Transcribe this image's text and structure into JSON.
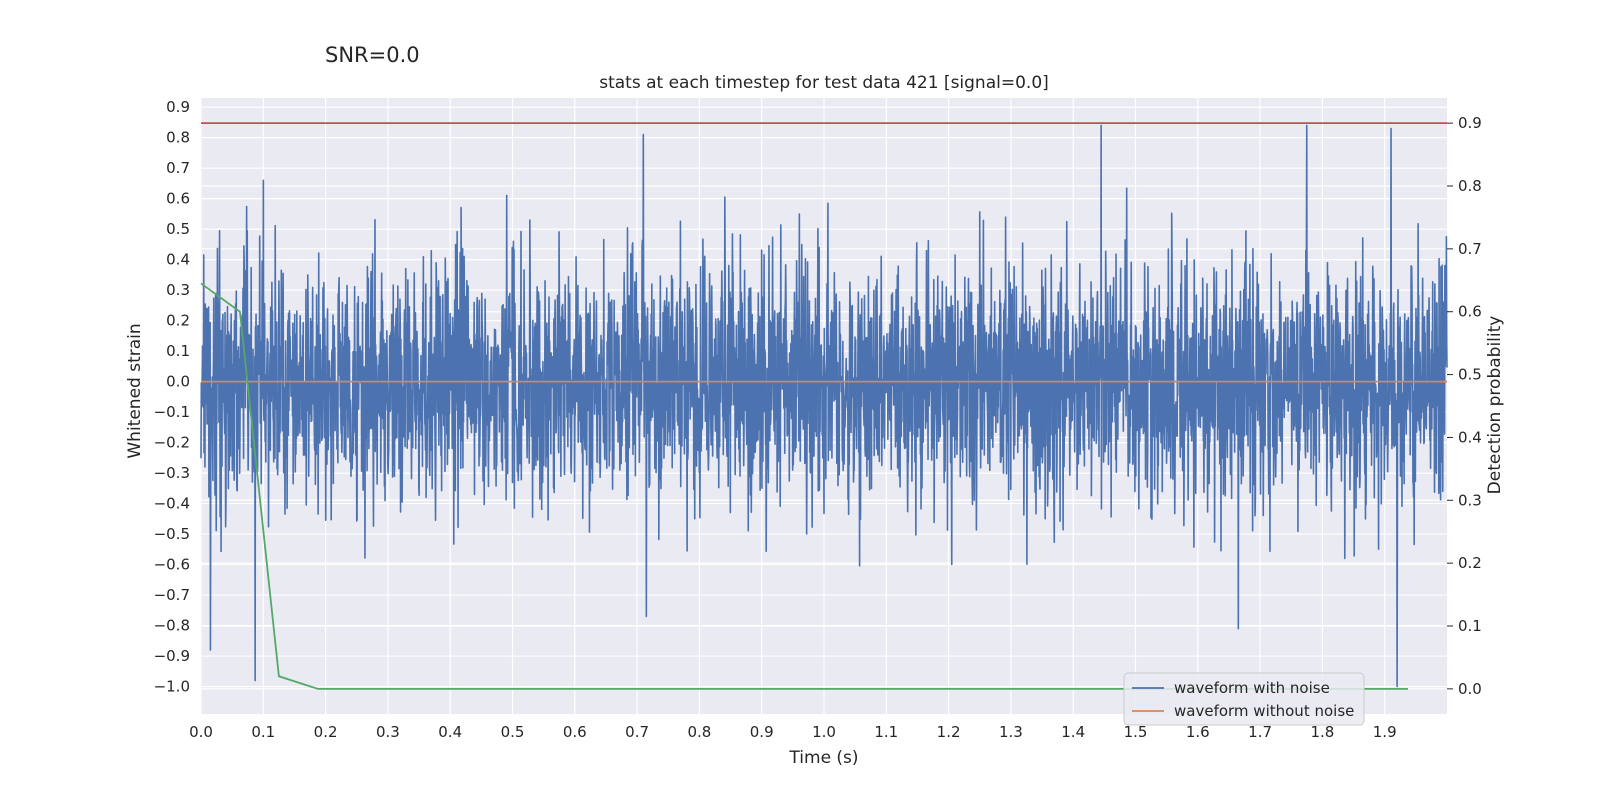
{
  "colors": {
    "background": "#eaeaf2",
    "grid": "#ffffff",
    "noisy": "#4c72b0",
    "clean": "#dd8452",
    "probability": "#55a868",
    "threshold": "#c44e52"
  },
  "chart_data": {
    "type": "line",
    "suptitle": "SNR=0.0",
    "title": "stats at each timestep for test data 421 [signal=0.0]",
    "xlabel": "Time (s)",
    "ylabel_left": "Whitened strain",
    "ylabel_right": "Detection probability",
    "xlim": [
      0.0,
      2.0
    ],
    "ylim_left": [
      -1.09,
      0.93
    ],
    "ylim_right": [
      -0.04,
      0.94
    ],
    "x_ticks": [
      "0.0",
      "0.1",
      "0.2",
      "0.3",
      "0.4",
      "0.5",
      "0.6",
      "0.7",
      "0.8",
      "0.9",
      "1.0",
      "1.1",
      "1.2",
      "1.3",
      "1.4",
      "1.5",
      "1.6",
      "1.7",
      "1.8",
      "1.9"
    ],
    "y_left_ticks": [
      "0.9",
      "0.8",
      "0.7",
      "0.6",
      "0.5",
      "0.4",
      "0.3",
      "0.2",
      "0.1",
      "0.0",
      "−0.1",
      "−0.2",
      "−0.3",
      "−0.4",
      "−0.5",
      "−0.6",
      "−0.7",
      "−0.8",
      "−0.9",
      "−1.0"
    ],
    "y_right_ticks": [
      "0.9",
      "0.8",
      "0.7",
      "0.6",
      "0.5",
      "0.4",
      "0.3",
      "0.2",
      "0.1",
      "0.0"
    ],
    "grid": true,
    "legend_position": "bottom-right",
    "series": [
      {
        "name": "waveform with noise",
        "axis": "left",
        "style": "dense noise, sampled ~2048 Hz, amplitude mostly within ±0.5, spikes to about ±0.85",
        "extremes": [
          {
            "x": 0.015,
            "y": -0.88
          },
          {
            "x": 0.087,
            "y": -0.98
          },
          {
            "x": 0.1,
            "y": 0.66
          },
          {
            "x": 0.71,
            "y": 0.81
          },
          {
            "x": 0.715,
            "y": -0.77
          },
          {
            "x": 1.445,
            "y": 0.84
          },
          {
            "x": 1.665,
            "y": -0.81
          },
          {
            "x": 1.775,
            "y": 0.84
          },
          {
            "x": 1.91,
            "y": 0.83
          },
          {
            "x": 1.92,
            "y": -1.0
          }
        ]
      },
      {
        "name": "waveform without noise",
        "axis": "left",
        "x": [
          0.0,
          2.0
        ],
        "y": [
          0.0,
          0.0
        ]
      },
      {
        "axis": "right",
        "x": [
          0.0,
          0.0625,
          0.125,
          0.1875,
          0.25,
          0.5,
          0.75,
          1.0,
          1.25,
          1.5,
          1.75,
          1.9375
        ],
        "y": [
          0.645,
          0.6,
          0.02,
          0.0,
          0.0,
          0.0,
          0.0,
          0.0,
          0.0,
          0.0,
          0.0,
          0.0
        ]
      },
      {
        "axis": "right",
        "x": [
          0.0,
          2.0
        ],
        "y": [
          0.9,
          0.9
        ]
      }
    ]
  }
}
